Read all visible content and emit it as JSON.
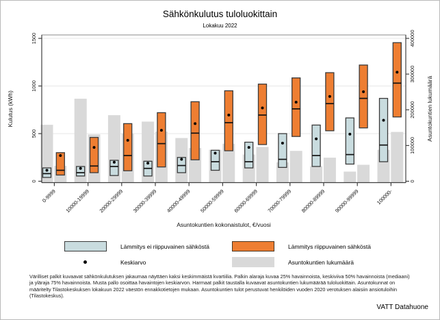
{
  "title": "Sähkönkulutus tuloluokittain",
  "subtitle": "Lokakuu 2022",
  "source": "VATT Datahuone",
  "footnote": "Värilliset palkit kuvaavat sähkönkulutuksen jakaumaa näyttäen kaksi keskimmäistä kvartiilia. Palkin alaraja kuvaa 25% havainnoista, keskiviiva 50% havainnoista (mediaani) ja yläraja 75% havainnoista. Musta pallo osoittaa havaintojen keskiarvon. Harmaat palkit taustalla kuvaavat asuntokuntien lukumäärää tuloluokittain. Asuntokunnat on määritelty Tilastokeskuksen lokakuun 2022 väestön ennakkotietojen mukaan. Asuntokuntien tulot perustuvat henkilöiden vuoden 2020 verotuksen alaisiin ansiotuloihin (Tilastokeskus).",
  "legend": {
    "non_electric": "Lämmitys ei riippuvainen sähköstä",
    "electric": "Lämmitys riippuvainen sähköstä",
    "mean": "Keskiarvo",
    "households": "Asuntokuntien lukumäärä"
  },
  "colors": {
    "non_electric_box": "#c9dcdf",
    "electric_box": "#ee7e32",
    "household_bar": "#d9d9d9",
    "box_border": "#3a3a3a",
    "median_line": "#111111",
    "mean_dot": "#000000",
    "gridline": "#e7e7e7",
    "axis": "#3f3f3f"
  },
  "chart_data": {
    "type": "boxplot-with-background-bars",
    "title": "Sähkönkulutus tuloluokittain",
    "subtitle": "Lokakuu 2022",
    "xlabel": "Asuntokuntien kokonaistulot, €/vuosi",
    "ylabel_left": "Kulutus (kWh)",
    "ylabel_right": "Asuntokuntien lukumäärä",
    "ylim_left": [
      0,
      1540
    ],
    "yticks_left": [
      0,
      500,
      1000,
      1500
    ],
    "ylim_right": [
      0,
      410000
    ],
    "yticks_right": [
      0,
      100000,
      200000,
      300000,
      400000
    ],
    "grid": "horizontal-left-axis-only",
    "legend_position": "bottom",
    "categories": [
      "0-9999",
      "10000-19999",
      "20000-29999",
      "30000-39999",
      "40000-49999",
      "50000-59999",
      "60000-69999",
      "70000-79999",
      "80000-89999",
      "90000-99999",
      "100000-"
    ],
    "series": [
      {
        "name": "Lämmitys ei riippuvainen sähköstä",
        "type": "box",
        "axis": "left",
        "unit": "kWh",
        "q25": [
          40,
          55,
          60,
          55,
          90,
          115,
          140,
          145,
          155,
          180,
          205
        ],
        "median": [
          80,
          90,
          155,
          135,
          165,
          205,
          205,
          230,
          270,
          280,
          380
        ],
        "q75": [
          140,
          155,
          220,
          210,
          250,
          325,
          410,
          500,
          590,
          665,
          870
        ],
        "mean": [
          115,
          135,
          200,
          190,
          230,
          295,
          355,
          400,
          445,
          495,
          640
        ]
      },
      {
        "name": "Lämmitys riippuvainen sähköstä",
        "type": "box",
        "axis": "left",
        "unit": "kWh",
        "q25": [
          65,
          90,
          110,
          150,
          225,
          320,
          385,
          470,
          530,
          560,
          675
        ],
        "median": [
          115,
          160,
          270,
          395,
          505,
          615,
          695,
          760,
          815,
          870,
          1030
        ],
        "q75": [
          300,
          460,
          605,
          720,
          835,
          950,
          1020,
          1085,
          1140,
          1220,
          1455
        ],
        "mean": [
          270,
          355,
          430,
          535,
          605,
          695,
          770,
          830,
          890,
          940,
          1145
        ]
      },
      {
        "name": "Asuntokuntien lukumäärä (lämmitys ei riippuvainen sähköstä)",
        "type": "bar",
        "axis": "right",
        "unit": "asuntokuntaa",
        "values": [
          158000,
          231000,
          185000,
          167000,
          121000,
          88000,
          75000,
          53000,
          42000,
          27000,
          88000
        ]
      },
      {
        "name": "Asuntokuntien lukumäärä (lämmitys riippuvainen sähköstä)",
        "type": "bar",
        "axis": "right",
        "unit": "asuntokuntaa",
        "values": [
          43000,
          131000,
          134000,
          139000,
          93000,
          105000,
          96000,
          85000,
          66000,
          46000,
          138000
        ]
      }
    ]
  }
}
